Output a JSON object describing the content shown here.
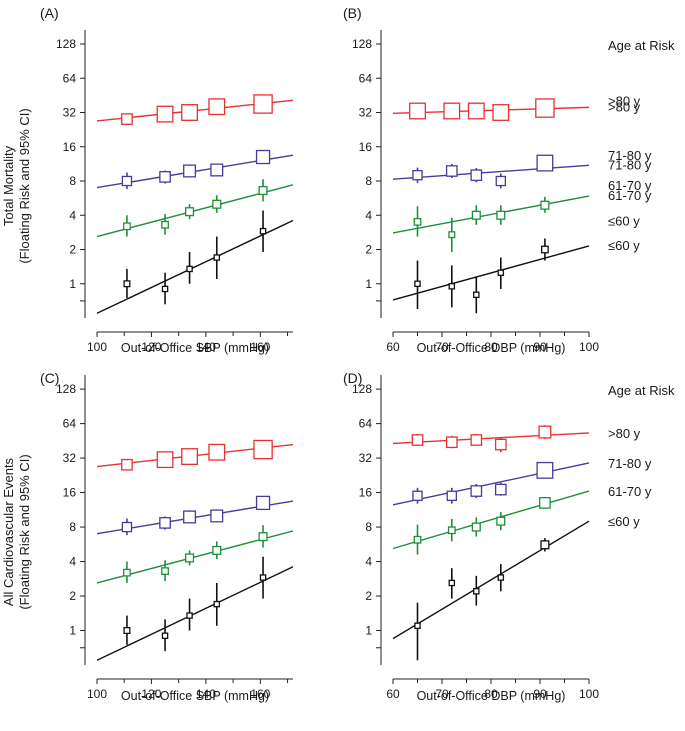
{
  "figure": {
    "left_ylabel_top": [
      "Total Mortality",
      "(Floating Risk and 95% CI)"
    ],
    "left_ylabel_bottom": [
      "All Cardiovascular Events",
      "(Floating Risk and 95% CI)"
    ],
    "legend_title": "Age at Risk"
  },
  "colors": {
    ">80 y": "#e8312f",
    "71-80 y": "#4a3a9a",
    "61-70 y": "#1f8f3a",
    "≤60 y": "#111111"
  },
  "chart_data": [
    {
      "panel": "(A)",
      "type": "scatter",
      "scale": "log2",
      "xlabel": "Out-of-Office SBP (mmHg)",
      "xlim": [
        100,
        172
      ],
      "xticks": [
        100,
        120,
        140,
        160
      ],
      "ylim": [
        0.5,
        170
      ],
      "yticks": [
        1,
        2,
        4,
        8,
        16,
        32,
        64,
        128
      ],
      "legend_title": "",
      "series": [
        {
          "name": ">80 y",
          "label": ">80 y",
          "fit": [
            [
              100,
              27
            ],
            [
              172,
              41
            ]
          ],
          "points": [
            {
              "x": 111,
              "y": 28,
              "lo": 25,
              "hi": 31,
              "size": 4
            },
            {
              "x": 125,
              "y": 31,
              "lo": 27,
              "hi": 35,
              "size": 6
            },
            {
              "x": 134,
              "y": 32,
              "lo": 28,
              "hi": 36,
              "size": 6
            },
            {
              "x": 144,
              "y": 36,
              "lo": 32,
              "hi": 40,
              "size": 6
            },
            {
              "x": 161,
              "y": 38,
              "lo": 34,
              "hi": 43,
              "size": 7
            }
          ]
        },
        {
          "name": "71-80 y",
          "label": "71-80 y",
          "fit": [
            [
              100,
              7
            ],
            [
              172,
              13.5
            ]
          ],
          "points": [
            {
              "x": 111,
              "y": 8,
              "lo": 6.8,
              "hi": 9.5,
              "size": 3.5
            },
            {
              "x": 125,
              "y": 8.7,
              "lo": 7.6,
              "hi": 9.9,
              "size": 4
            },
            {
              "x": 134,
              "y": 9.8,
              "lo": 8.6,
              "hi": 11.2,
              "size": 4.5
            },
            {
              "x": 144,
              "y": 10,
              "lo": 8.8,
              "hi": 11.4,
              "size": 4.5
            },
            {
              "x": 161,
              "y": 13,
              "lo": 11.4,
              "hi": 14.8,
              "size": 5
            }
          ]
        },
        {
          "name": "61-70 y",
          "label": "61-70 y",
          "fit": [
            [
              100,
              2.6
            ],
            [
              172,
              7.4
            ]
          ],
          "points": [
            {
              "x": 111,
              "y": 3.2,
              "lo": 2.6,
              "hi": 4,
              "size": 2.5
            },
            {
              "x": 125,
              "y": 3.3,
              "lo": 2.7,
              "hi": 4.1,
              "size": 2.5
            },
            {
              "x": 134,
              "y": 4.3,
              "lo": 3.7,
              "hi": 5,
              "size": 3
            },
            {
              "x": 144,
              "y": 5,
              "lo": 4.2,
              "hi": 6,
              "size": 3
            },
            {
              "x": 161,
              "y": 6.6,
              "lo": 5.3,
              "hi": 8.3,
              "size": 3
            }
          ]
        },
        {
          "name": "≤60 y",
          "label": "≤60 y",
          "fit": [
            [
              100,
              0.55
            ],
            [
              172,
              3.6
            ]
          ],
          "points": [
            {
              "x": 111,
              "y": 1,
              "lo": 0.75,
              "hi": 1.35,
              "size": 2.2
            },
            {
              "x": 125,
              "y": 0.9,
              "lo": 0.66,
              "hi": 1.25,
              "size": 2
            },
            {
              "x": 134,
              "y": 1.35,
              "lo": 1,
              "hi": 1.9,
              "size": 2
            },
            {
              "x": 144,
              "y": 1.7,
              "lo": 1.1,
              "hi": 2.6,
              "size": 2
            },
            {
              "x": 161,
              "y": 2.9,
              "lo": 1.9,
              "hi": 4.4,
              "size": 2
            }
          ]
        }
      ]
    },
    {
      "panel": "(B)",
      "type": "scatter",
      "scale": "log2",
      "xlabel": "Out-of-Office DBP (mmHg)",
      "xlim": [
        60,
        100
      ],
      "xticks": [
        60,
        70,
        80,
        90,
        100
      ],
      "ylim": [
        0.5,
        170
      ],
      "yticks": [
        1,
        2,
        4,
        8,
        16,
        32,
        64,
        128
      ],
      "legend_title": "Age at Risk",
      "series": [
        {
          "name": ">80 y",
          "label": ">80 y",
          "fit": [
            [
              60,
              31.5
            ],
            [
              100,
              35.5
            ]
          ],
          "points": [
            {
              "x": 65,
              "y": 33,
              "lo": 29,
              "hi": 37,
              "size": 6
            },
            {
              "x": 72,
              "y": 33,
              "lo": 29,
              "hi": 37,
              "size": 6
            },
            {
              "x": 77,
              "y": 33,
              "lo": 29,
              "hi": 37,
              "size": 6
            },
            {
              "x": 82,
              "y": 32,
              "lo": 28,
              "hi": 36,
              "size": 6
            },
            {
              "x": 91,
              "y": 35,
              "lo": 31,
              "hi": 39,
              "size": 7
            }
          ]
        },
        {
          "name": "71-80 y",
          "label": "71-80 y",
          "fit": [
            [
              60,
              8.3
            ],
            [
              100,
              11
            ]
          ],
          "points": [
            {
              "x": 65,
              "y": 9,
              "lo": 7.7,
              "hi": 10.5,
              "size": 3.5
            },
            {
              "x": 72,
              "y": 9.8,
              "lo": 8.5,
              "hi": 11.3,
              "size": 4
            },
            {
              "x": 77,
              "y": 9,
              "lo": 7.8,
              "hi": 10.4,
              "size": 4
            },
            {
              "x": 82,
              "y": 8,
              "lo": 6.9,
              "hi": 9.3,
              "size": 3.5
            },
            {
              "x": 91,
              "y": 11.5,
              "lo": 10,
              "hi": 13.2,
              "size": 6
            }
          ]
        },
        {
          "name": "61-70 y",
          "label": "61-70 y",
          "fit": [
            [
              60,
              2.8
            ],
            [
              100,
              5.9
            ]
          ],
          "points": [
            {
              "x": 65,
              "y": 3.5,
              "lo": 2.6,
              "hi": 4.8,
              "size": 2.5
            },
            {
              "x": 72,
              "y": 2.7,
              "lo": 1.9,
              "hi": 3.8,
              "size": 2.2
            },
            {
              "x": 77,
              "y": 4,
              "lo": 3.3,
              "hi": 4.9,
              "size": 3
            },
            {
              "x": 82,
              "y": 4,
              "lo": 3.3,
              "hi": 4.9,
              "size": 3
            },
            {
              "x": 91,
              "y": 4.9,
              "lo": 4.2,
              "hi": 5.8,
              "size": 3
            }
          ]
        },
        {
          "name": "≤60 y",
          "label": "≤60 y",
          "fit": [
            [
              60,
              0.72
            ],
            [
              100,
              2.15
            ]
          ],
          "points": [
            {
              "x": 65,
              "y": 1,
              "lo": 0.6,
              "hi": 1.6,
              "size": 2
            },
            {
              "x": 72,
              "y": 0.95,
              "lo": 0.62,
              "hi": 1.45,
              "size": 2
            },
            {
              "x": 77,
              "y": 0.8,
              "lo": 0.55,
              "hi": 1.15,
              "size": 2
            },
            {
              "x": 82,
              "y": 1.25,
              "lo": 0.9,
              "hi": 1.7,
              "size": 2
            },
            {
              "x": 91,
              "y": 2,
              "lo": 1.6,
              "hi": 2.5,
              "size": 2.5
            }
          ]
        }
      ]
    },
    {
      "panel": "(C)",
      "type": "scatter",
      "scale": "log2",
      "xlabel": "Out-of-Office SBP (mmHg)",
      "xlim": [
        100,
        172
      ],
      "xticks": [
        100,
        120,
        140,
        160
      ],
      "ylim": [
        0.5,
        170
      ],
      "yticks": [
        1,
        2,
        4,
        8,
        16,
        32,
        64,
        128
      ],
      "legend_title": "",
      "series": [
        {
          "name": ">80 y",
          "label": "",
          "fit": [
            [
              100,
              27
            ],
            [
              172,
              42
            ]
          ],
          "points": [
            {
              "x": 111,
              "y": 28,
              "lo": 25,
              "hi": 31,
              "size": 4
            },
            {
              "x": 125,
              "y": 31,
              "lo": 27,
              "hi": 35,
              "size": 6
            },
            {
              "x": 134,
              "y": 33,
              "lo": 29,
              "hi": 37,
              "size": 6
            },
            {
              "x": 144,
              "y": 36,
              "lo": 32,
              "hi": 40,
              "size": 6
            },
            {
              "x": 161,
              "y": 38,
              "lo": 34,
              "hi": 43,
              "size": 7
            }
          ]
        },
        {
          "name": "71-80 y",
          "label": "",
          "fit": [
            [
              100,
              7
            ],
            [
              172,
              13.5
            ]
          ],
          "points": [
            {
              "x": 111,
              "y": 8,
              "lo": 6.8,
              "hi": 9.5,
              "size": 3.5
            },
            {
              "x": 125,
              "y": 8.7,
              "lo": 7.6,
              "hi": 9.9,
              "size": 4
            },
            {
              "x": 134,
              "y": 9.8,
              "lo": 8.6,
              "hi": 11.2,
              "size": 4.5
            },
            {
              "x": 144,
              "y": 10,
              "lo": 8.8,
              "hi": 11.4,
              "size": 4.5
            },
            {
              "x": 161,
              "y": 13,
              "lo": 11.4,
              "hi": 14.8,
              "size": 5
            }
          ]
        },
        {
          "name": "61-70 y",
          "label": "",
          "fit": [
            [
              100,
              2.6
            ],
            [
              172,
              7.4
            ]
          ],
          "points": [
            {
              "x": 111,
              "y": 3.2,
              "lo": 2.6,
              "hi": 4,
              "size": 2.5
            },
            {
              "x": 125,
              "y": 3.3,
              "lo": 2.7,
              "hi": 4.1,
              "size": 2.5
            },
            {
              "x": 134,
              "y": 4.3,
              "lo": 3.7,
              "hi": 5,
              "size": 3
            },
            {
              "x": 144,
              "y": 5,
              "lo": 4.2,
              "hi": 6,
              "size": 3
            },
            {
              "x": 161,
              "y": 6.6,
              "lo": 5.3,
              "hi": 8.3,
              "size": 3
            }
          ]
        },
        {
          "name": "≤60 y",
          "label": "",
          "fit": [
            [
              100,
              0.55
            ],
            [
              172,
              3.6
            ]
          ],
          "points": [
            {
              "x": 111,
              "y": 1,
              "lo": 0.75,
              "hi": 1.35,
              "size": 2.2
            },
            {
              "x": 125,
              "y": 0.9,
              "lo": 0.66,
              "hi": 1.25,
              "size": 2
            },
            {
              "x": 134,
              "y": 1.35,
              "lo": 1,
              "hi": 1.9,
              "size": 2
            },
            {
              "x": 144,
              "y": 1.7,
              "lo": 1.1,
              "hi": 2.6,
              "size": 2
            },
            {
              "x": 161,
              "y": 2.9,
              "lo": 1.9,
              "hi": 4.4,
              "size": 2
            }
          ]
        }
      ]
    },
    {
      "panel": "(D)",
      "type": "scatter",
      "scale": "log2",
      "xlabel": "Out-of-Office DBP (mmHg)",
      "xlim": [
        60,
        100
      ],
      "xticks": [
        60,
        70,
        80,
        90,
        100
      ],
      "ylim": [
        0.5,
        170
      ],
      "yticks": [
        1,
        2,
        4,
        8,
        16,
        32,
        64,
        128
      ],
      "legend_title": "Age at Risk",
      "series": [
        {
          "name": ">80 y",
          "label": ">80 y",
          "fit": [
            [
              60,
              43
            ],
            [
              100,
              53
            ]
          ],
          "points": [
            {
              "x": 65,
              "y": 46,
              "lo": 41,
              "hi": 52,
              "size": 4
            },
            {
              "x": 72,
              "y": 44,
              "lo": 39,
              "hi": 50,
              "size": 4
            },
            {
              "x": 77,
              "y": 46,
              "lo": 41,
              "hi": 52,
              "size": 4
            },
            {
              "x": 82,
              "y": 42,
              "lo": 36,
              "hi": 48,
              "size": 4
            },
            {
              "x": 91,
              "y": 54,
              "lo": 47,
              "hi": 62,
              "size": 4.5
            }
          ]
        },
        {
          "name": "71-80 y",
          "label": "71-80 y",
          "fit": [
            [
              60,
              12.5
            ],
            [
              100,
              29
            ]
          ],
          "points": [
            {
              "x": 65,
              "y": 15,
              "lo": 12.8,
              "hi": 17.6,
              "size": 3.5
            },
            {
              "x": 72,
              "y": 15,
              "lo": 12.8,
              "hi": 17.6,
              "size": 3.5
            },
            {
              "x": 77,
              "y": 16.5,
              "lo": 14.3,
              "hi": 19,
              "size": 4
            },
            {
              "x": 82,
              "y": 17,
              "lo": 15,
              "hi": 19.5,
              "size": 4
            },
            {
              "x": 91,
              "y": 25,
              "lo": 22,
              "hi": 28.5,
              "size": 6
            }
          ]
        },
        {
          "name": "61-70 y",
          "label": "61-70 y",
          "fit": [
            [
              60,
              5.2
            ],
            [
              100,
              16.5
            ]
          ],
          "points": [
            {
              "x": 65,
              "y": 6.2,
              "lo": 4.6,
              "hi": 8.4,
              "size": 2.5
            },
            {
              "x": 72,
              "y": 7.5,
              "lo": 6,
              "hi": 9.4,
              "size": 2.5
            },
            {
              "x": 77,
              "y": 8,
              "lo": 6.6,
              "hi": 9.7,
              "size": 3
            },
            {
              "x": 82,
              "y": 9,
              "lo": 7.5,
              "hi": 10.8,
              "size": 3
            },
            {
              "x": 91,
              "y": 13,
              "lo": 11.6,
              "hi": 14.6,
              "size": 4
            }
          ]
        },
        {
          "name": "≤60 y",
          "label": "≤60 y",
          "fit": [
            [
              60,
              0.85
            ],
            [
              100,
              9
            ]
          ],
          "points": [
            {
              "x": 65,
              "y": 1.1,
              "lo": 0.55,
              "hi": 1.75,
              "size": 2
            },
            {
              "x": 72,
              "y": 2.6,
              "lo": 1.9,
              "hi": 3.5,
              "size": 2
            },
            {
              "x": 77,
              "y": 2.2,
              "lo": 1.65,
              "hi": 3,
              "size": 2
            },
            {
              "x": 82,
              "y": 2.9,
              "lo": 2.2,
              "hi": 3.8,
              "size": 2
            },
            {
              "x": 91,
              "y": 5.6,
              "lo": 4.9,
              "hi": 6.4,
              "size": 3
            }
          ]
        }
      ]
    }
  ]
}
